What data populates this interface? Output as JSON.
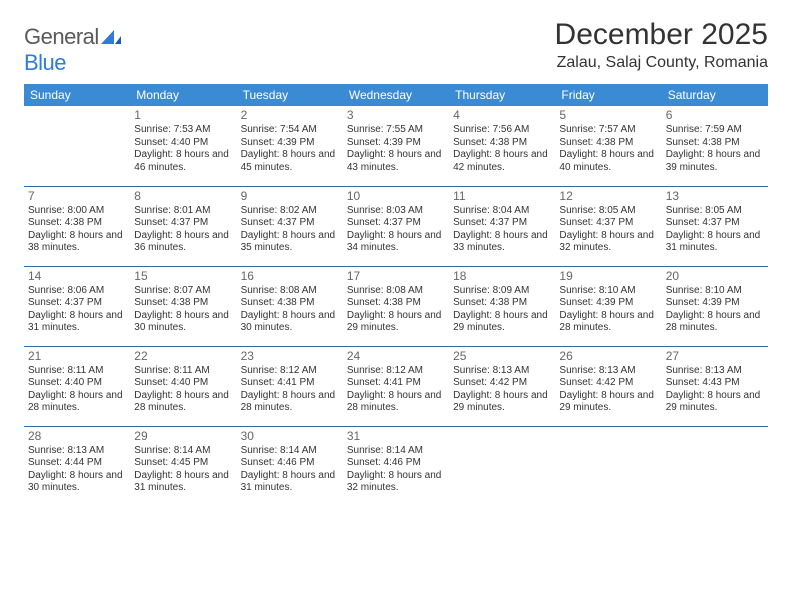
{
  "logo": {
    "word1": "General",
    "word2": "Blue"
  },
  "title": "December 2025",
  "location": "Zalau, Salaj County, Romania",
  "colors": {
    "header_bg": "#3b8bd4",
    "header_text": "#ffffff",
    "row_divider": "#2d6aa8",
    "body_text": "#333333",
    "daynum_text": "#666666",
    "logo_gray": "#5a5a5a",
    "logo_blue": "#2e7cd6",
    "page_bg": "#ffffff"
  },
  "weekdays": [
    "Sunday",
    "Monday",
    "Tuesday",
    "Wednesday",
    "Thursday",
    "Friday",
    "Saturday"
  ],
  "weeks": [
    [
      null,
      {
        "n": "1",
        "sr": "7:53 AM",
        "ss": "4:40 PM",
        "dl": "8 hours and 46 minutes."
      },
      {
        "n": "2",
        "sr": "7:54 AM",
        "ss": "4:39 PM",
        "dl": "8 hours and 45 minutes."
      },
      {
        "n": "3",
        "sr": "7:55 AM",
        "ss": "4:39 PM",
        "dl": "8 hours and 43 minutes."
      },
      {
        "n": "4",
        "sr": "7:56 AM",
        "ss": "4:38 PM",
        "dl": "8 hours and 42 minutes."
      },
      {
        "n": "5",
        "sr": "7:57 AM",
        "ss": "4:38 PM",
        "dl": "8 hours and 40 minutes."
      },
      {
        "n": "6",
        "sr": "7:59 AM",
        "ss": "4:38 PM",
        "dl": "8 hours and 39 minutes."
      }
    ],
    [
      {
        "n": "7",
        "sr": "8:00 AM",
        "ss": "4:38 PM",
        "dl": "8 hours and 38 minutes."
      },
      {
        "n": "8",
        "sr": "8:01 AM",
        "ss": "4:37 PM",
        "dl": "8 hours and 36 minutes."
      },
      {
        "n": "9",
        "sr": "8:02 AM",
        "ss": "4:37 PM",
        "dl": "8 hours and 35 minutes."
      },
      {
        "n": "10",
        "sr": "8:03 AM",
        "ss": "4:37 PM",
        "dl": "8 hours and 34 minutes."
      },
      {
        "n": "11",
        "sr": "8:04 AM",
        "ss": "4:37 PM",
        "dl": "8 hours and 33 minutes."
      },
      {
        "n": "12",
        "sr": "8:05 AM",
        "ss": "4:37 PM",
        "dl": "8 hours and 32 minutes."
      },
      {
        "n": "13",
        "sr": "8:05 AM",
        "ss": "4:37 PM",
        "dl": "8 hours and 31 minutes."
      }
    ],
    [
      {
        "n": "14",
        "sr": "8:06 AM",
        "ss": "4:37 PM",
        "dl": "8 hours and 31 minutes."
      },
      {
        "n": "15",
        "sr": "8:07 AM",
        "ss": "4:38 PM",
        "dl": "8 hours and 30 minutes."
      },
      {
        "n": "16",
        "sr": "8:08 AM",
        "ss": "4:38 PM",
        "dl": "8 hours and 30 minutes."
      },
      {
        "n": "17",
        "sr": "8:08 AM",
        "ss": "4:38 PM",
        "dl": "8 hours and 29 minutes."
      },
      {
        "n": "18",
        "sr": "8:09 AM",
        "ss": "4:38 PM",
        "dl": "8 hours and 29 minutes."
      },
      {
        "n": "19",
        "sr": "8:10 AM",
        "ss": "4:39 PM",
        "dl": "8 hours and 28 minutes."
      },
      {
        "n": "20",
        "sr": "8:10 AM",
        "ss": "4:39 PM",
        "dl": "8 hours and 28 minutes."
      }
    ],
    [
      {
        "n": "21",
        "sr": "8:11 AM",
        "ss": "4:40 PM",
        "dl": "8 hours and 28 minutes."
      },
      {
        "n": "22",
        "sr": "8:11 AM",
        "ss": "4:40 PM",
        "dl": "8 hours and 28 minutes."
      },
      {
        "n": "23",
        "sr": "8:12 AM",
        "ss": "4:41 PM",
        "dl": "8 hours and 28 minutes."
      },
      {
        "n": "24",
        "sr": "8:12 AM",
        "ss": "4:41 PM",
        "dl": "8 hours and 28 minutes."
      },
      {
        "n": "25",
        "sr": "8:13 AM",
        "ss": "4:42 PM",
        "dl": "8 hours and 29 minutes."
      },
      {
        "n": "26",
        "sr": "8:13 AM",
        "ss": "4:42 PM",
        "dl": "8 hours and 29 minutes."
      },
      {
        "n": "27",
        "sr": "8:13 AM",
        "ss": "4:43 PM",
        "dl": "8 hours and 29 minutes."
      }
    ],
    [
      {
        "n": "28",
        "sr": "8:13 AM",
        "ss": "4:44 PM",
        "dl": "8 hours and 30 minutes."
      },
      {
        "n": "29",
        "sr": "8:14 AM",
        "ss": "4:45 PM",
        "dl": "8 hours and 31 minutes."
      },
      {
        "n": "30",
        "sr": "8:14 AM",
        "ss": "4:46 PM",
        "dl": "8 hours and 31 minutes."
      },
      {
        "n": "31",
        "sr": "8:14 AM",
        "ss": "4:46 PM",
        "dl": "8 hours and 32 minutes."
      },
      null,
      null,
      null
    ]
  ],
  "labels": {
    "sunrise": "Sunrise:",
    "sunset": "Sunset:",
    "daylight": "Daylight:"
  }
}
